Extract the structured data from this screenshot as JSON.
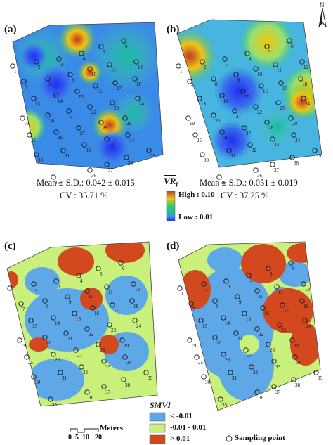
{
  "panels": [
    {
      "label": "(a)",
      "stats": "Mean ± S.D.: 0.042 ± 0.015",
      "cv": "CV : 35.71 %"
    },
    {
      "label": "(b)",
      "stats": "Mean ± S.D.: 0.051 ± 0.019",
      "cv": "CV : 37.25 %"
    },
    {
      "label": "(c)"
    },
    {
      "label": "(d)"
    }
  ],
  "vr_legend": {
    "title": "VR",
    "subscript": "i",
    "high": "High : 0.10",
    "low": "Low : 0.01",
    "colors": [
      "#c0392b",
      "#f1c40f",
      "#2ecc71",
      "#1abc9c",
      "#3498db",
      "#1f2ff0"
    ]
  },
  "smvi_legend": {
    "title": "SMVI",
    "items": [
      {
        "label": "< -0.01",
        "color": "#5fa8e8"
      },
      {
        "label": "-0.01 - 0.01",
        "color": "#c8f07a"
      },
      {
        "label": "> 0.01",
        "color": "#d2481f"
      }
    ],
    "point_label": "Sampling point"
  },
  "scale_bar": {
    "unit": "Meters",
    "ticks": [
      "0",
      "5",
      "10",
      "20"
    ]
  },
  "north": "N",
  "sampling_points": [
    "1",
    "2",
    "3",
    "4",
    "5",
    "6",
    "7",
    "8",
    "9",
    "10",
    "11",
    "12",
    "13",
    "14",
    "15",
    "16",
    "17",
    "18",
    "19",
    "20",
    "21",
    "22",
    "23",
    "24",
    "25",
    "26",
    "27",
    "28",
    "29",
    "30",
    "31",
    "32",
    "33",
    "34",
    "35",
    "36",
    "37",
    "38",
    "39"
  ]
}
